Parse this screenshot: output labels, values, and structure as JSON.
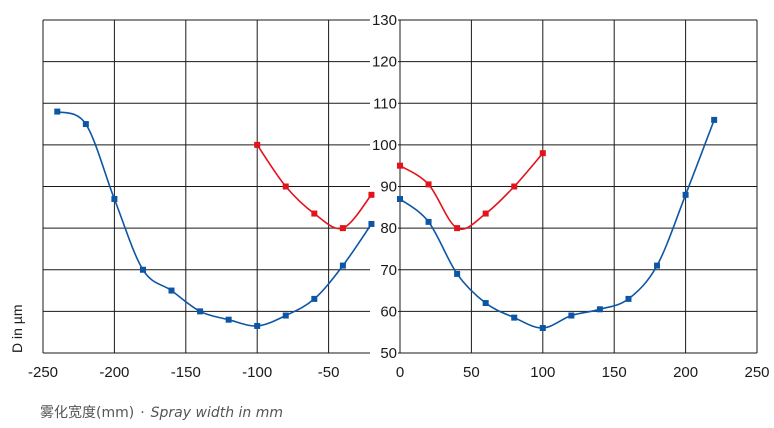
{
  "chart_data": {
    "type": "line",
    "title": "",
    "xlabel_cn": "雾化宽度(mm)",
    "xlabel_sep": "·",
    "xlabel_en": "Spray width in mm",
    "ylabel": "D in µm",
    "x_ticks": [
      "-250",
      "-200",
      "-150",
      "-100",
      "-50",
      "0",
      "50",
      "100",
      "150",
      "200",
      "250"
    ],
    "y_ticks": [
      "50",
      "60",
      "70",
      "80",
      "90",
      "100",
      "110",
      "120",
      "130"
    ],
    "grid": true,
    "colors": {
      "blue": "#0d56a6",
      "red": "#e3121b",
      "grid": "#1a1a1a"
    },
    "panels": [
      {
        "xlim": [
          -250,
          0
        ],
        "series": [
          {
            "color": "blue",
            "x": [
              -240,
              -220,
              -200,
              -180,
              -160,
              -140,
              -120,
              -100,
              -80,
              -60,
              -40,
              -20
            ],
            "y": [
              108,
              105,
              87,
              70,
              65,
              60,
              58,
              56.5,
              59,
              63,
              71,
              81
            ]
          },
          {
            "color": "red",
            "x": [
              -100,
              -80,
              -60,
              -40,
              -20
            ],
            "y": [
              100,
              90,
              83.5,
              80,
              88
            ]
          }
        ]
      },
      {
        "xlim": [
          0,
          250
        ],
        "series": [
          {
            "color": "blue",
            "x": [
              0,
              20,
              40,
              60,
              80,
              100,
              120,
              140,
              160,
              180,
              200,
              220
            ],
            "y": [
              87,
              81.5,
              69,
              62,
              58.5,
              56,
              59,
              60.5,
              63,
              71,
              88,
              106
            ]
          },
          {
            "color": "red",
            "x": [
              0,
              20,
              40,
              60,
              80,
              100
            ],
            "y": [
              95,
              90.5,
              80,
              83.5,
              90,
              98
            ]
          }
        ]
      }
    ]
  }
}
